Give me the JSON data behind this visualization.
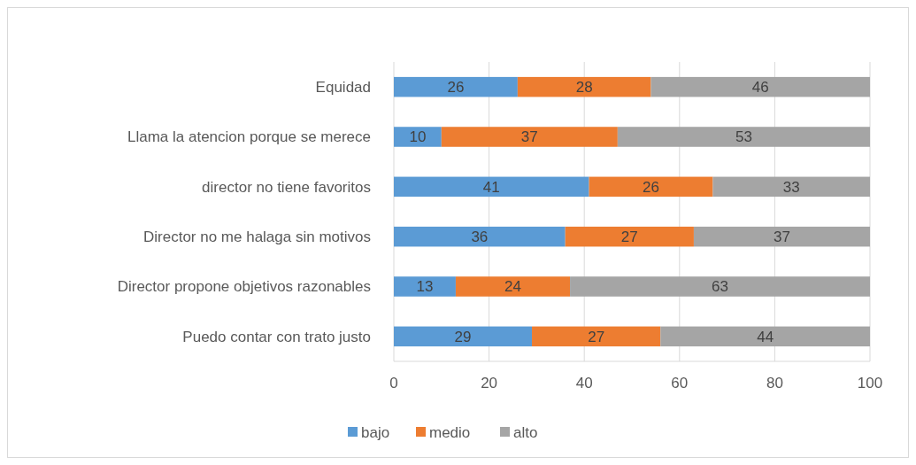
{
  "chart_data": {
    "type": "bar",
    "orientation": "horizontal",
    "stacked": true,
    "categories": [
      "Equidad",
      "Llama la atencion porque se merece",
      "director no tiene favoritos",
      "Director no me halaga sin motivos",
      "Director propone objetivos razonables",
      "Puedo contar con trato justo"
    ],
    "series": [
      {
        "name": "bajo",
        "color": "#5b9bd5",
        "values": [
          26,
          10,
          41,
          36,
          13,
          29
        ]
      },
      {
        "name": "medio",
        "color": "#ed7d31",
        "values": [
          28,
          37,
          26,
          27,
          24,
          27
        ]
      },
      {
        "name": "alto",
        "color": "#a5a5a5",
        "values": [
          46,
          53,
          33,
          37,
          63,
          44
        ]
      }
    ],
    "xlim": [
      0,
      100
    ],
    "xticks": [
      0,
      20,
      40,
      60,
      80,
      100
    ],
    "grid": "x",
    "legend": "bottom",
    "data_labels": true
  }
}
